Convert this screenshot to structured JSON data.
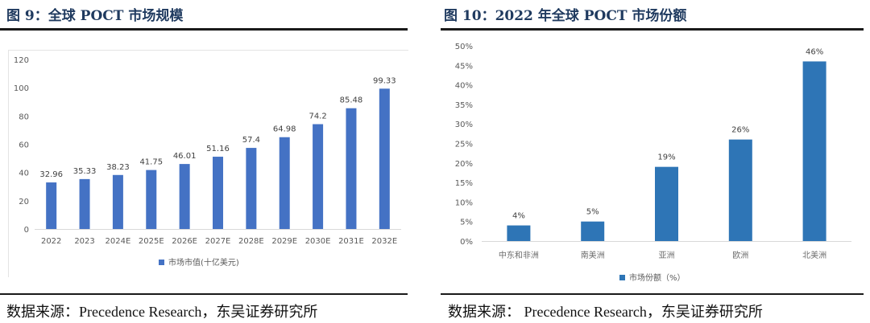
{
  "left": {
    "title": "图 9：全球 POCT 市场规模",
    "source": "数据来源：Precedence Research，东吴证券研究所"
  },
  "right": {
    "title": "图 10：2022 年全球 POCT 市场份额",
    "source": "数据来源：  Precedence Research，东吴证券研究所"
  },
  "chart_data": [
    {
      "type": "bar",
      "title": "全球 POCT 市场规模",
      "categories": [
        "2022",
        "2023",
        "2024E",
        "2025E",
        "2026E",
        "2027E",
        "2028E",
        "2029E",
        "2030E",
        "2031E",
        "2032E"
      ],
      "series": [
        {
          "name": "市场市值(十亿美元)",
          "values": [
            32.96,
            35.33,
            38.23,
            41.75,
            46.01,
            51.16,
            57.4,
            64.98,
            74.2,
            85.48,
            99.33
          ],
          "labels": [
            "32.96",
            "35.33",
            "38.23",
            "41.75",
            "46.01",
            "51.16",
            "57.4",
            "64.98",
            "74.2",
            "85.48",
            "99.33"
          ]
        }
      ],
      "yticks": [
        "0",
        "20",
        "40",
        "60",
        "80",
        "100",
        "120"
      ],
      "ylim": [
        0,
        120
      ],
      "color": "#4472c4",
      "legend": "bottom",
      "grid": false
    },
    {
      "type": "bar",
      "title": "2022 年全球 POCT 市场份额",
      "categories": [
        "中东和非洲",
        "南美洲",
        "亚洲",
        "欧洲",
        "北美洲"
      ],
      "series": [
        {
          "name": "市场份额（%）",
          "values": [
            4,
            5,
            19,
            26,
            46
          ],
          "labels": [
            "4%",
            "5%",
            "19%",
            "26%",
            "46%"
          ]
        }
      ],
      "yticks": [
        "0%",
        "5%",
        "10%",
        "15%",
        "20%",
        "25%",
        "30%",
        "35%",
        "40%",
        "45%",
        "50%"
      ],
      "ylim": [
        0,
        50
      ],
      "color": "#2e75b6",
      "legend": "bottom",
      "grid": false
    }
  ]
}
